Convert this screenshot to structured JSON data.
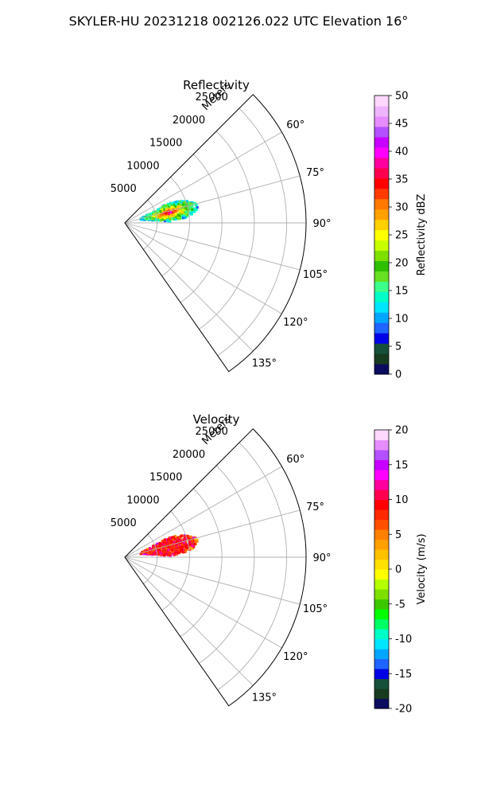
{
  "figure": {
    "suptitle": "SKYLER-HU  20231218  002126.022 UTC Elevation 16°"
  },
  "chart_data": [
    {
      "type": "heatmap",
      "projection": "polar-sector",
      "title": "Reflectivity",
      "radial_axis": {
        "label": "Meters",
        "range": [
          0,
          28000
        ],
        "ticks": [
          5000,
          10000,
          15000,
          20000,
          25000
        ],
        "tick_labels": [
          "5000",
          "10000",
          "15000",
          "20000",
          "25000"
        ]
      },
      "angular_axis": {
        "range_deg": [
          45,
          145
        ],
        "ticks_deg": [
          60,
          75,
          90,
          105,
          120,
          135
        ],
        "tick_labels": [
          "60°",
          "75°",
          "90°",
          "105°",
          "120°",
          "135°"
        ]
      },
      "grid": true,
      "colorbar": {
        "label": "Reflectivity dBZ",
        "range": [
          0,
          50
        ],
        "ticks": [
          0,
          5,
          10,
          15,
          20,
          25,
          30,
          35,
          40,
          45,
          50
        ],
        "tick_labels": [
          "0",
          "5",
          "10",
          "15",
          "20",
          "25",
          "30",
          "35",
          "40",
          "45",
          "50"
        ],
        "colors": [
          "#0b0b60",
          "#173b1f",
          "#16503a",
          "#0000e6",
          "#1e64ff",
          "#00a6ff",
          "#00e6ff",
          "#00ffc8",
          "#3cff8c",
          "#66e020",
          "#2ec000",
          "#7ee000",
          "#c8ff00",
          "#ffff00",
          "#ffd000",
          "#ffa000",
          "#ff7800",
          "#ff3c00",
          "#ff0000",
          "#ff0050",
          "#ff00a0",
          "#ff00ff",
          "#c800ff",
          "#b450ff",
          "#e68cff",
          "#f0b4ff",
          "#ffd7ff"
        ]
      },
      "echo": {
        "azimuth_range_deg": [
          66,
          88
        ],
        "range_m": [
          2500,
          11500
        ],
        "core_value": 40,
        "edge_value": 12
      }
    },
    {
      "type": "heatmap",
      "projection": "polar-sector",
      "title": "Velocity",
      "radial_axis": {
        "label": "Meters",
        "range": [
          0,
          28000
        ],
        "ticks": [
          5000,
          10000,
          15000,
          20000,
          25000
        ],
        "tick_labels": [
          "5000",
          "10000",
          "15000",
          "20000",
          "25000"
        ]
      },
      "angular_axis": {
        "range_deg": [
          45,
          145
        ],
        "ticks_deg": [
          60,
          75,
          90,
          105,
          120,
          135
        ],
        "tick_labels": [
          "60°",
          "75°",
          "90°",
          "105°",
          "120°",
          "135°"
        ]
      },
      "grid": true,
      "colorbar": {
        "label": "Velocity (m/s)",
        "range": [
          -20,
          20
        ],
        "ticks": [
          -20,
          -15,
          -10,
          -5,
          0,
          5,
          10,
          15,
          20
        ],
        "tick_labels": [
          "-20",
          "-15",
          "-10",
          "-5",
          "0",
          "5",
          "10",
          "15",
          "20"
        ],
        "colors": [
          "#0b0b60",
          "#173b1f",
          "#16503a",
          "#0000e6",
          "#1e64ff",
          "#00a6ff",
          "#00e6ff",
          "#00ffc8",
          "#00ff64",
          "#00ff00",
          "#3cc800",
          "#7ee000",
          "#b4ff00",
          "#ffff00",
          "#ffe000",
          "#ffc000",
          "#ffa000",
          "#ff8000",
          "#ff5000",
          "#ff2800",
          "#ff0000",
          "#ff0050",
          "#ff00a0",
          "#ff00ff",
          "#c800ff",
          "#b450ff",
          "#e68cff",
          "#ffd7ff"
        ]
      },
      "echo": {
        "azimuth_range_deg": [
          66,
          88
        ],
        "range_m": [
          2500,
          11500
        ],
        "core_value": 9,
        "edge_value": 12
      }
    }
  ]
}
